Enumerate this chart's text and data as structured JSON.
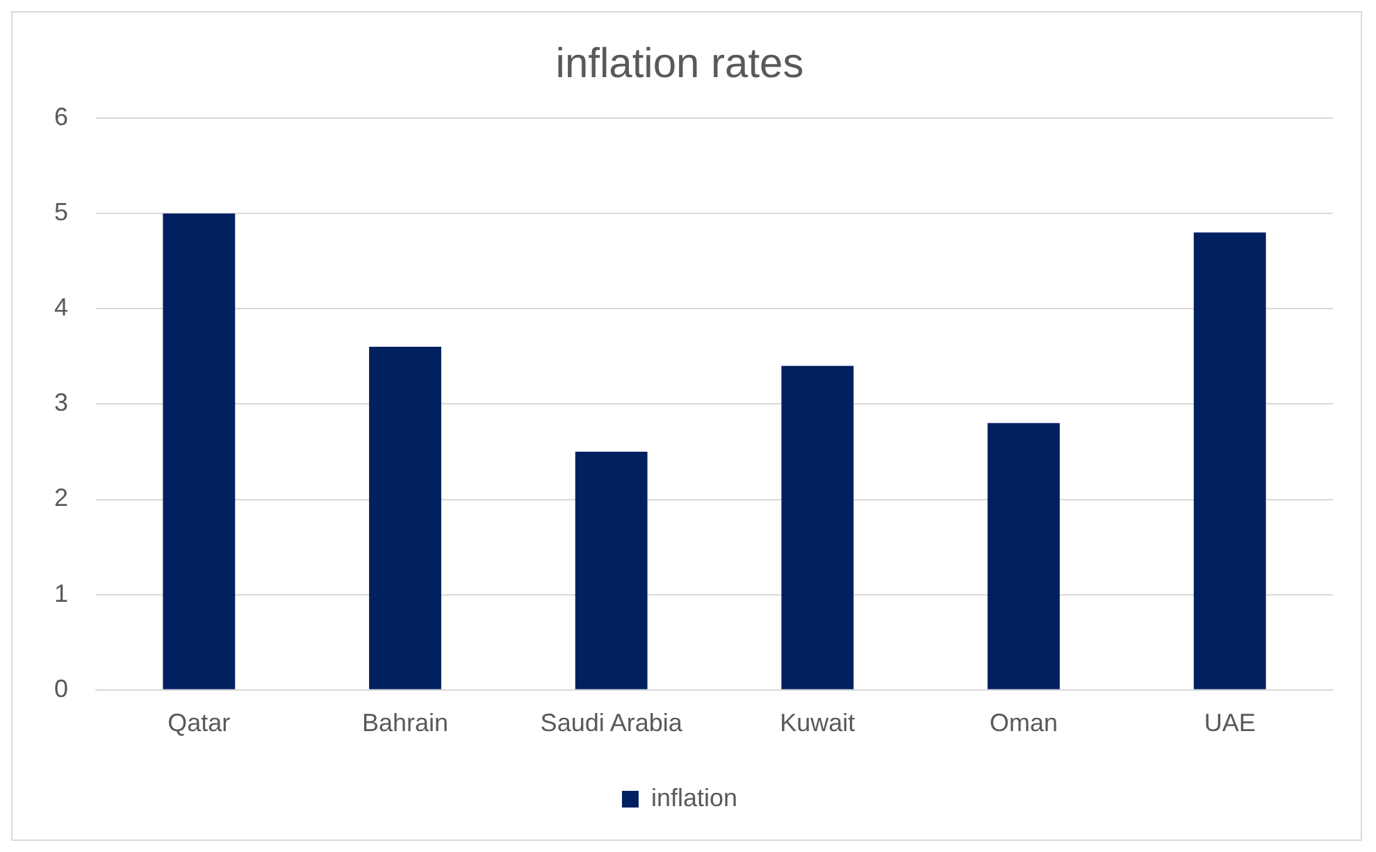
{
  "chart_data": {
    "type": "bar",
    "title": "inflation rates",
    "categories": [
      "Qatar",
      "Bahrain",
      "Saudi Arabia",
      "Kuwait",
      "Oman",
      "UAE"
    ],
    "series": [
      {
        "name": "inflation",
        "color": "#002060",
        "values": [
          5.0,
          3.6,
          2.5,
          3.4,
          2.8,
          4.8
        ]
      }
    ],
    "ylim": [
      0,
      6
    ],
    "yticks": [
      0,
      1,
      2,
      3,
      4,
      5,
      6
    ],
    "grid": "y",
    "legend": "bottom"
  }
}
